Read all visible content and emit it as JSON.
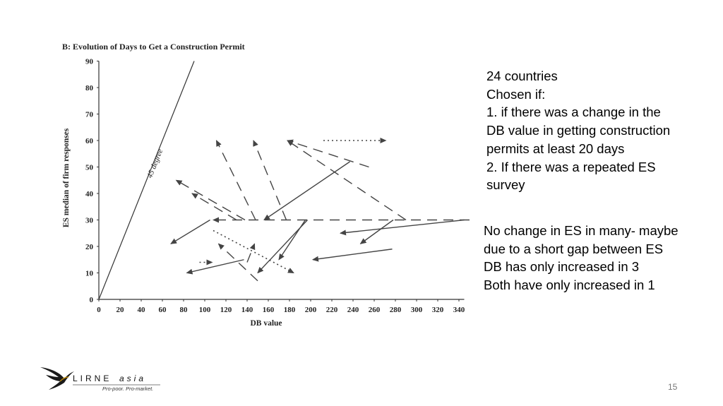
{
  "chart_data": {
    "type": "scatter",
    "title": "B: Evolution of Days to Get a Construction Permit",
    "xlabel": "DB value",
    "ylabel": "ES median of firm responses",
    "xlim": [
      0,
      345
    ],
    "ylim": [
      0,
      90
    ],
    "x_ticks": [
      0,
      20,
      40,
      60,
      80,
      100,
      120,
      140,
      160,
      180,
      200,
      220,
      240,
      260,
      280,
      300,
      320,
      340
    ],
    "y_ticks": [
      0,
      10,
      20,
      30,
      40,
      50,
      60,
      70,
      80,
      90
    ],
    "reference_line": {
      "label": "45 degree",
      "from": [
        0,
        0
      ],
      "to": [
        90,
        90
      ]
    },
    "series": [
      {
        "style": "solid",
        "from": [
          105,
          30
        ],
        "to": [
          68,
          21
        ]
      },
      {
        "style": "solid",
        "from": [
          137,
          15
        ],
        "to": [
          83,
          10
        ]
      },
      {
        "style": "solid",
        "from": [
          197,
          30
        ],
        "to": [
          150,
          10
        ]
      },
      {
        "style": "solid",
        "from": [
          195,
          30
        ],
        "to": [
          170,
          15
        ]
      },
      {
        "style": "solid",
        "from": [
          237,
          52
        ],
        "to": [
          156,
          30
        ]
      },
      {
        "style": "solid",
        "from": [
          345,
          30
        ],
        "to": [
          228,
          25
        ]
      },
      {
        "style": "solid",
        "from": [
          278,
          30
        ],
        "to": [
          247,
          21
        ]
      },
      {
        "style": "solid",
        "from": [
          277,
          19
        ],
        "to": [
          202,
          15
        ]
      },
      {
        "style": "dashed",
        "from": [
          350,
          30
        ],
        "to": [
          108,
          30
        ]
      },
      {
        "style": "dashed",
        "from": [
          150,
          7
        ],
        "to": [
          113,
          21
        ]
      },
      {
        "style": "dashed",
        "from": [
          138,
          30
        ],
        "to": [
          73,
          45
        ]
      },
      {
        "style": "dashed",
        "from": [
          130,
          30
        ],
        "to": [
          88,
          40
        ]
      },
      {
        "style": "dashed",
        "from": [
          148,
          30
        ],
        "to": [
          111,
          60
        ]
      },
      {
        "style": "dashed",
        "from": [
          177,
          30
        ],
        "to": [
          146,
          60
        ]
      },
      {
        "style": "dashed",
        "from": [
          255,
          50
        ],
        "to": [
          178,
          60
        ]
      },
      {
        "style": "dashed",
        "from": [
          290,
          30
        ],
        "to": [
          178,
          60
        ]
      },
      {
        "style": "dashed",
        "from": [
          140,
          14
        ],
        "to": [
          147,
          21
        ]
      },
      {
        "style": "dotted",
        "from": [
          212,
          60
        ],
        "to": [
          271,
          60
        ]
      },
      {
        "style": "dotted",
        "from": [
          108,
          26
        ],
        "to": [
          184,
          10
        ]
      },
      {
        "style": "dotted",
        "from": [
          95,
          14
        ],
        "to": [
          107,
          14
        ]
      }
    ]
  },
  "notes": {
    "block1": [
      "24 countries",
      "Chosen if:",
      "1. if there was a change in the",
      "DB value in getting construction",
      "permits at least 20 days",
      "2. If there was a repeated ES",
      "survey"
    ],
    "block2": [
      "No change in ES in many- maybe",
      "due to a short gap between ES",
      "DB has only increased in 3",
      "Both have only increased in 1"
    ]
  },
  "logo": {
    "name_upper": "LIRNE",
    "name_lower": "asia",
    "tagline": "Pro-poor. Pro-market."
  },
  "page_number": "15",
  "colors": {
    "ink": "#444444",
    "background": "#ffffff",
    "page_number": "#777777"
  }
}
